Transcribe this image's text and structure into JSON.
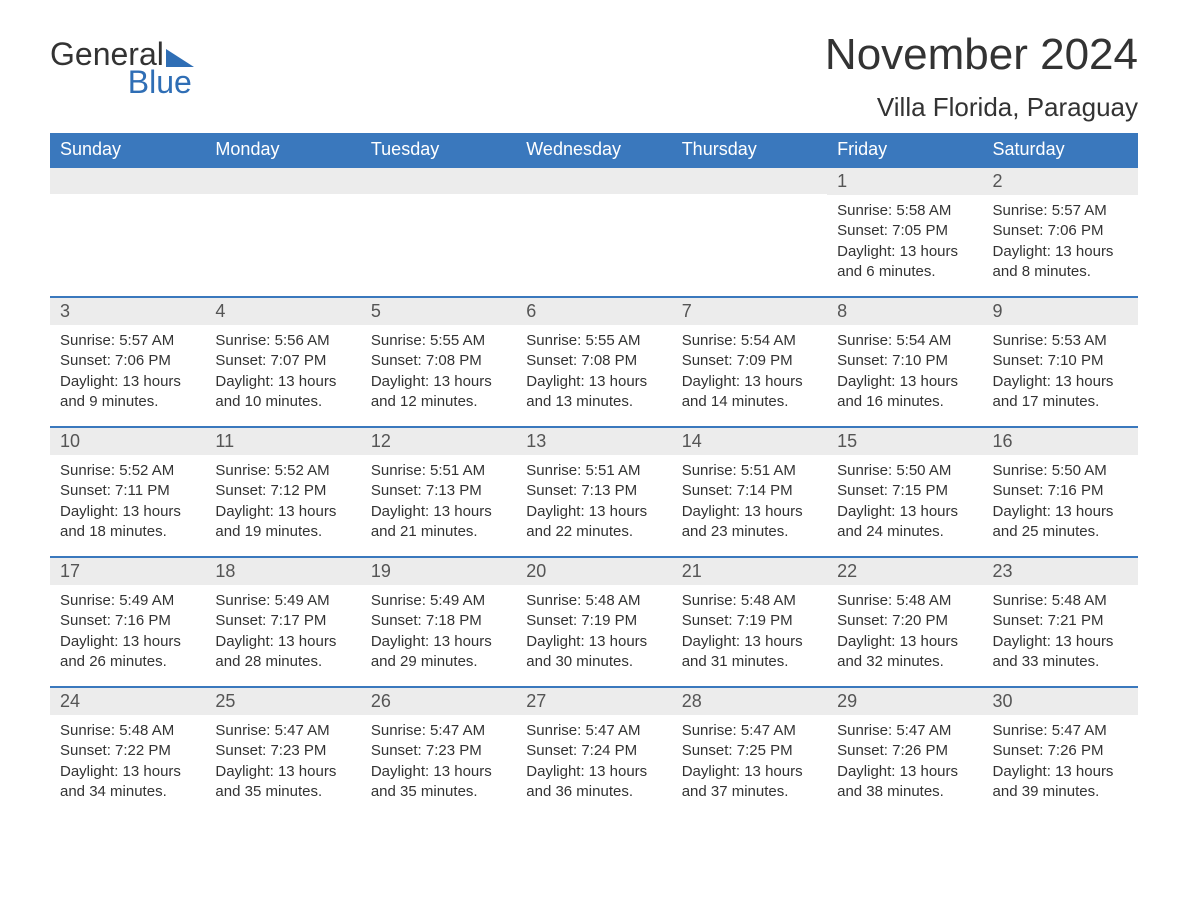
{
  "brand": {
    "general": "General",
    "blue": "Blue"
  },
  "title": "November 2024",
  "location": "Villa Florida, Paraguay",
  "colors": {
    "header_bg": "#3a78bd",
    "header_text": "#ffffff",
    "daynum_bg": "#ececec",
    "daynum_text": "#555555",
    "body_text": "#333333",
    "rule": "#3a78bd",
    "accent": "#2f6eb5",
    "page_bg": "#ffffff"
  },
  "typography": {
    "title_fontsize": 44,
    "location_fontsize": 26,
    "dow_fontsize": 18,
    "daynum_fontsize": 18,
    "body_fontsize": 15,
    "font_family": "Arial"
  },
  "layout": {
    "columns": 7,
    "rows": 5,
    "leading_blanks": 5
  },
  "days_of_week": [
    "Sunday",
    "Monday",
    "Tuesday",
    "Wednesday",
    "Thursday",
    "Friday",
    "Saturday"
  ],
  "days": [
    {
      "n": 1,
      "sunrise": "5:58 AM",
      "sunset": "7:05 PM",
      "daylight": "13 hours and 6 minutes."
    },
    {
      "n": 2,
      "sunrise": "5:57 AM",
      "sunset": "7:06 PM",
      "daylight": "13 hours and 8 minutes."
    },
    {
      "n": 3,
      "sunrise": "5:57 AM",
      "sunset": "7:06 PM",
      "daylight": "13 hours and 9 minutes."
    },
    {
      "n": 4,
      "sunrise": "5:56 AM",
      "sunset": "7:07 PM",
      "daylight": "13 hours and 10 minutes."
    },
    {
      "n": 5,
      "sunrise": "5:55 AM",
      "sunset": "7:08 PM",
      "daylight": "13 hours and 12 minutes."
    },
    {
      "n": 6,
      "sunrise": "5:55 AM",
      "sunset": "7:08 PM",
      "daylight": "13 hours and 13 minutes."
    },
    {
      "n": 7,
      "sunrise": "5:54 AM",
      "sunset": "7:09 PM",
      "daylight": "13 hours and 14 minutes."
    },
    {
      "n": 8,
      "sunrise": "5:54 AM",
      "sunset": "7:10 PM",
      "daylight": "13 hours and 16 minutes."
    },
    {
      "n": 9,
      "sunrise": "5:53 AM",
      "sunset": "7:10 PM",
      "daylight": "13 hours and 17 minutes."
    },
    {
      "n": 10,
      "sunrise": "5:52 AM",
      "sunset": "7:11 PM",
      "daylight": "13 hours and 18 minutes."
    },
    {
      "n": 11,
      "sunrise": "5:52 AM",
      "sunset": "7:12 PM",
      "daylight": "13 hours and 19 minutes."
    },
    {
      "n": 12,
      "sunrise": "5:51 AM",
      "sunset": "7:13 PM",
      "daylight": "13 hours and 21 minutes."
    },
    {
      "n": 13,
      "sunrise": "5:51 AM",
      "sunset": "7:13 PM",
      "daylight": "13 hours and 22 minutes."
    },
    {
      "n": 14,
      "sunrise": "5:51 AM",
      "sunset": "7:14 PM",
      "daylight": "13 hours and 23 minutes."
    },
    {
      "n": 15,
      "sunrise": "5:50 AM",
      "sunset": "7:15 PM",
      "daylight": "13 hours and 24 minutes."
    },
    {
      "n": 16,
      "sunrise": "5:50 AM",
      "sunset": "7:16 PM",
      "daylight": "13 hours and 25 minutes."
    },
    {
      "n": 17,
      "sunrise": "5:49 AM",
      "sunset": "7:16 PM",
      "daylight": "13 hours and 26 minutes."
    },
    {
      "n": 18,
      "sunrise": "5:49 AM",
      "sunset": "7:17 PM",
      "daylight": "13 hours and 28 minutes."
    },
    {
      "n": 19,
      "sunrise": "5:49 AM",
      "sunset": "7:18 PM",
      "daylight": "13 hours and 29 minutes."
    },
    {
      "n": 20,
      "sunrise": "5:48 AM",
      "sunset": "7:19 PM",
      "daylight": "13 hours and 30 minutes."
    },
    {
      "n": 21,
      "sunrise": "5:48 AM",
      "sunset": "7:19 PM",
      "daylight": "13 hours and 31 minutes."
    },
    {
      "n": 22,
      "sunrise": "5:48 AM",
      "sunset": "7:20 PM",
      "daylight": "13 hours and 32 minutes."
    },
    {
      "n": 23,
      "sunrise": "5:48 AM",
      "sunset": "7:21 PM",
      "daylight": "13 hours and 33 minutes."
    },
    {
      "n": 24,
      "sunrise": "5:48 AM",
      "sunset": "7:22 PM",
      "daylight": "13 hours and 34 minutes."
    },
    {
      "n": 25,
      "sunrise": "5:47 AM",
      "sunset": "7:23 PM",
      "daylight": "13 hours and 35 minutes."
    },
    {
      "n": 26,
      "sunrise": "5:47 AM",
      "sunset": "7:23 PM",
      "daylight": "13 hours and 35 minutes."
    },
    {
      "n": 27,
      "sunrise": "5:47 AM",
      "sunset": "7:24 PM",
      "daylight": "13 hours and 36 minutes."
    },
    {
      "n": 28,
      "sunrise": "5:47 AM",
      "sunset": "7:25 PM",
      "daylight": "13 hours and 37 minutes."
    },
    {
      "n": 29,
      "sunrise": "5:47 AM",
      "sunset": "7:26 PM",
      "daylight": "13 hours and 38 minutes."
    },
    {
      "n": 30,
      "sunrise": "5:47 AM",
      "sunset": "7:26 PM",
      "daylight": "13 hours and 39 minutes."
    }
  ],
  "labels": {
    "sunrise": "Sunrise: ",
    "sunset": "Sunset: ",
    "daylight": "Daylight: "
  }
}
